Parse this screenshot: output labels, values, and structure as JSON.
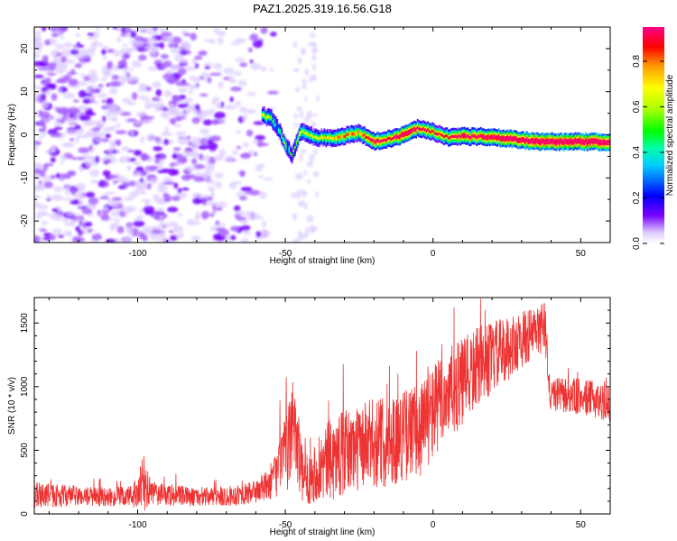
{
  "title": "PAZ1.2025.319.16.56.G18",
  "chart_data": [
    {
      "type": "heatmap",
      "xlabel": "Height of straight line (km)",
      "ylabel": "Frequency (Hz)",
      "xlim": [
        -135,
        60
      ],
      "ylim": [
        -25,
        25
      ],
      "xticks": [
        -100,
        -50,
        0,
        50
      ],
      "yticks": [
        -20,
        -10,
        0,
        10,
        20
      ],
      "colorbar": {
        "label": "Normalized spectral amplitude",
        "range": [
          0,
          0.95
        ],
        "ticks": [
          "0.0",
          "0.2",
          "0.4",
          "0.6",
          "0.8"
        ]
      },
      "noise_region_x": [
        -135,
        -58
      ],
      "signal_band_points": [
        [
          -58,
          4.5,
          0.35
        ],
        [
          -55,
          3.8,
          0.3
        ],
        [
          -52,
          0.5,
          0.25
        ],
        [
          -50,
          -2.5,
          0.3
        ],
        [
          -48,
          -4.8,
          0.25
        ],
        [
          -45,
          0.8,
          0.35
        ],
        [
          -40,
          -0.6,
          0.35
        ],
        [
          -35,
          -0.8,
          0.4
        ],
        [
          -30,
          -0.2,
          0.5
        ],
        [
          -25,
          0.4,
          0.45
        ],
        [
          -20,
          -1.6,
          0.7
        ],
        [
          -15,
          -0.9,
          0.55
        ],
        [
          -10,
          0.0,
          0.8
        ],
        [
          -5,
          1.6,
          0.6
        ],
        [
          0,
          0.6,
          0.55
        ],
        [
          5,
          -0.6,
          0.55
        ],
        [
          10,
          -0.4,
          0.7
        ],
        [
          15,
          -0.4,
          0.65
        ],
        [
          20,
          -0.6,
          0.75
        ],
        [
          25,
          -0.9,
          0.85
        ],
        [
          30,
          -1.2,
          0.8
        ],
        [
          35,
          -1.6,
          0.9
        ],
        [
          40,
          -1.6,
          0.88
        ],
        [
          45,
          -1.6,
          0.9
        ],
        [
          50,
          -1.6,
          0.9
        ],
        [
          55,
          -1.6,
          0.88
        ],
        [
          60,
          -1.6,
          0.9
        ]
      ]
    },
    {
      "type": "line",
      "xlabel": "Height of straight line (km)",
      "ylabel": "SNR (10 * v/v)",
      "xlim": [
        -135,
        60
      ],
      "ylim": [
        0,
        1700
      ],
      "xticks": [
        -100,
        -50,
        0,
        50
      ],
      "yticks": [
        0,
        500,
        1000,
        1500
      ],
      "color": "#ee3333",
      "envelope": [
        [
          -135,
          150,
          130
        ],
        [
          -120,
          140,
          100
        ],
        [
          -110,
          130,
          90
        ],
        [
          -100,
          140,
          120
        ],
        [
          -98,
          260,
          350
        ],
        [
          -96,
          160,
          120
        ],
        [
          -80,
          130,
          90
        ],
        [
          -70,
          140,
          100
        ],
        [
          -62,
          160,
          110
        ],
        [
          -56,
          220,
          150
        ],
        [
          -53,
          320,
          230
        ],
        [
          -51,
          450,
          300
        ],
        [
          -49,
          500,
          400
        ],
        [
          -47,
          800,
          550
        ],
        [
          -46,
          580,
          450
        ],
        [
          -44,
          260,
          250
        ],
        [
          -40,
          330,
          300
        ],
        [
          -35,
          420,
          400
        ],
        [
          -30,
          480,
          420
        ],
        [
          -25,
          520,
          420
        ],
        [
          -20,
          560,
          450
        ],
        [
          -15,
          570,
          450
        ],
        [
          -10,
          620,
          450
        ],
        [
          -5,
          650,
          480
        ],
        [
          0,
          800,
          480
        ],
        [
          5,
          950,
          450
        ],
        [
          10,
          1020,
          450
        ],
        [
          15,
          1150,
          400
        ],
        [
          20,
          1230,
          360
        ],
        [
          25,
          1290,
          320
        ],
        [
          30,
          1370,
          280
        ],
        [
          35,
          1430,
          260
        ],
        [
          38,
          1480,
          240
        ],
        [
          39.5,
          940,
          160
        ],
        [
          45,
          930,
          180
        ],
        [
          50,
          920,
          180
        ],
        [
          55,
          900,
          180
        ],
        [
          60,
          860,
          180
        ]
      ]
    }
  ]
}
